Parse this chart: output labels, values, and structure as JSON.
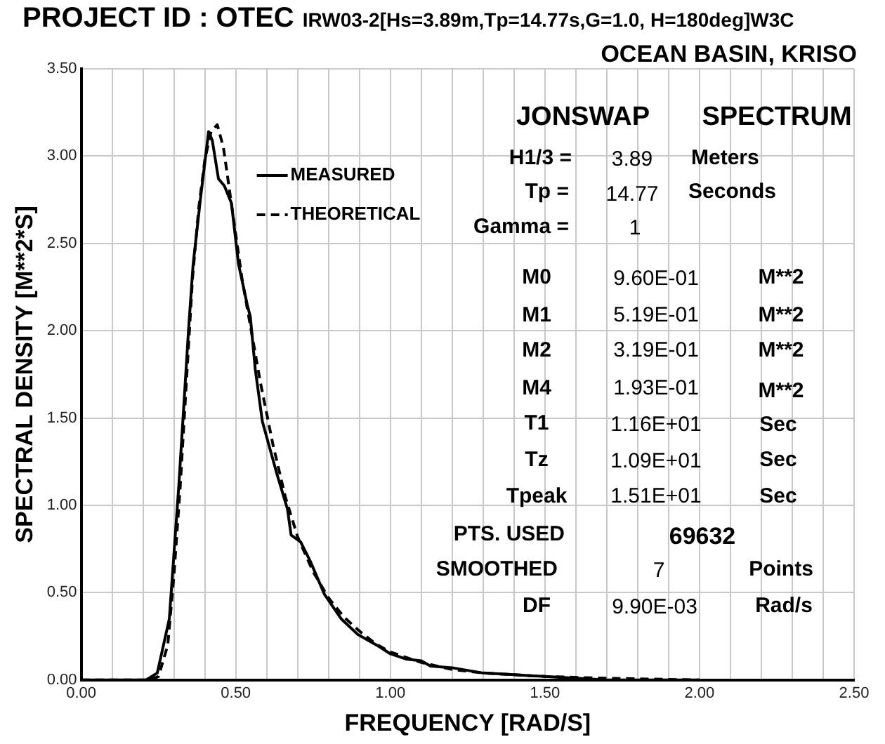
{
  "chart_data": {
    "type": "line",
    "title": "PROJECT ID : OTEC",
    "subtitle": "IRW03-2[Hs=3.89m,Tp=14.77s,G=1.0, H=180deg]W3C",
    "xlabel": "FREQUENCY [RAD/S]",
    "ylabel": "SPECTRAL DENSITY [M**2*S]",
    "annotations": [
      "OCEAN BASIN, KRISO",
      "JONSWAP",
      "SPECTRUM",
      "H1/3 =",
      "3.89",
      "Meters",
      "Tp =",
      "14.77",
      "Seconds",
      "Gamma =",
      "1",
      "M0",
      "9.60E-01",
      "M**2",
      "M1",
      "5.19E-01",
      "M**2",
      "M2",
      "3.19E-01",
      "M**2",
      "M4",
      "1.93E-01",
      "M**2",
      "T1",
      "1.16E+01",
      "Sec",
      "Tz",
      "1.09E+01",
      "Sec",
      "Tpeak",
      "1.51E+01",
      "Sec",
      "PTS. USED",
      "69632",
      "SMOOTHED",
      "7",
      "Points",
      "DF",
      "9.90E-03",
      "Rad/s"
    ],
    "series": [
      {
        "name": "MEASURED",
        "color": "#000000",
        "line_style": "solid",
        "x": [
          0,
          0.2,
          0.21,
          0.246,
          0.285,
          0.316,
          0.347,
          0.362,
          0.386,
          0.412,
          0.424,
          0.444,
          0.463,
          0.486,
          0.509,
          0.537,
          0.547,
          0.563,
          0.586,
          0.633,
          0.667,
          0.679,
          0.71,
          0.741,
          0.787,
          0.841,
          0.895,
          0.965,
          1.0,
          1.05,
          1.1,
          1.13,
          1.2,
          1.3,
          1.4,
          1.5,
          1.6,
          1.7,
          1.8,
          2.0
        ],
        "values": [
          0,
          0,
          0,
          0.04,
          0.35,
          1.12,
          2.0,
          2.38,
          2.76,
          3.14,
          3.09,
          2.87,
          2.83,
          2.73,
          2.38,
          2.15,
          2.08,
          1.78,
          1.48,
          1.18,
          0.98,
          0.83,
          0.79,
          0.68,
          0.49,
          0.35,
          0.26,
          0.19,
          0.15,
          0.12,
          0.11,
          0.08,
          0.07,
          0.04,
          0.03,
          0.02,
          0.01,
          0,
          0,
          0
        ]
      },
      {
        "name": "THEORETICAL",
        "color": "#000000",
        "line_style": "dashed",
        "x": [
          0,
          0.22,
          0.25,
          0.28,
          0.3,
          0.32,
          0.34,
          0.36,
          0.38,
          0.4,
          0.42,
          0.44,
          0.46,
          0.48,
          0.5,
          0.52,
          0.55,
          0.58,
          0.62,
          0.66,
          0.7,
          0.75,
          0.8,
          0.85,
          0.9,
          0.95,
          1.0,
          1.1,
          1.2,
          1.3,
          1.5,
          1.7,
          2.0
        ],
        "values": [
          0,
          0,
          0.02,
          0.2,
          0.6,
          1.1,
          1.7,
          2.3,
          2.7,
          2.98,
          3.14,
          3.18,
          3.05,
          2.8,
          2.55,
          2.3,
          2.0,
          1.7,
          1.35,
          1.05,
          0.82,
          0.62,
          0.47,
          0.36,
          0.28,
          0.21,
          0.16,
          0.1,
          0.06,
          0.04,
          0.02,
          0.01,
          0
        ]
      }
    ],
    "xlim": [
      0,
      2.5
    ],
    "xticks": [
      {
        "value": 0,
        "label": "0.00"
      },
      {
        "value": 0.1,
        "label": null
      },
      {
        "value": 0.2,
        "label": null
      },
      {
        "value": 0.3,
        "label": null
      },
      {
        "value": 0.4,
        "label": null
      },
      {
        "value": 0.5,
        "label": "0.50"
      },
      {
        "value": 0.6,
        "label": null
      },
      {
        "value": 0.7,
        "label": null
      },
      {
        "value": 0.8,
        "label": null
      },
      {
        "value": 0.9,
        "label": null
      },
      {
        "value": 1.0,
        "label": "1.00"
      },
      {
        "value": 1.1,
        "label": null
      },
      {
        "value": 1.2,
        "label": null
      },
      {
        "value": 1.3,
        "label": null
      },
      {
        "value": 1.4,
        "label": null
      },
      {
        "value": 1.5,
        "label": "1.50"
      },
      {
        "value": 1.6,
        "label": null
      },
      {
        "value": 1.7,
        "label": null
      },
      {
        "value": 1.8,
        "label": null
      },
      {
        "value": 1.9,
        "label": null
      },
      {
        "value": 2.0,
        "label": "2.00"
      },
      {
        "value": 2.1,
        "label": null
      },
      {
        "value": 2.2,
        "label": null
      },
      {
        "value": 2.3,
        "label": null
      },
      {
        "value": 2.4,
        "label": null
      },
      {
        "value": 2.5,
        "label": "2.50"
      }
    ],
    "ylim": [
      0,
      3.5
    ],
    "yticks": [
      {
        "value": 0,
        "label": "0.00"
      },
      {
        "value": 0.5,
        "label": "0.50"
      },
      {
        "value": 1.0,
        "label": "1.00"
      },
      {
        "value": 1.5,
        "label": "1.50"
      },
      {
        "value": 2.0,
        "label": "2.00"
      },
      {
        "value": 2.5,
        "label": "2.50"
      },
      {
        "value": 3.0,
        "label": "3.00"
      },
      {
        "value": 3.5,
        "label": "3.50"
      }
    ],
    "grid": true,
    "legend": "top left",
    "marker": "none"
  }
}
